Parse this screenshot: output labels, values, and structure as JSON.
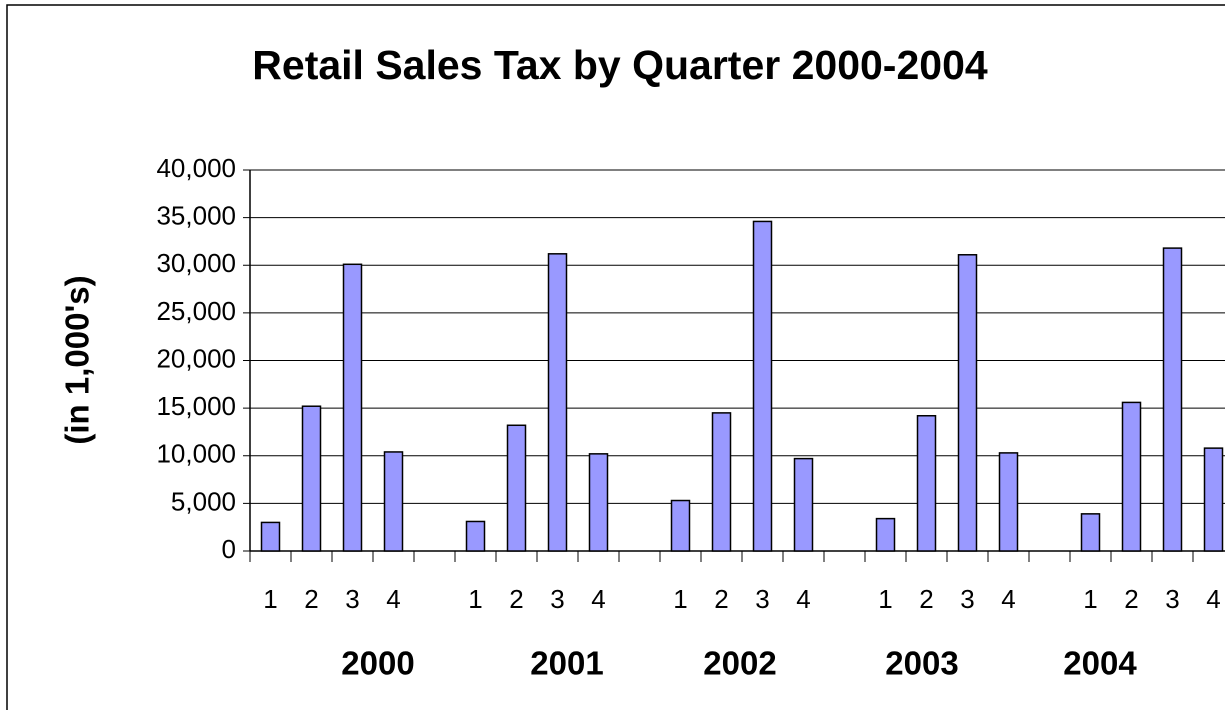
{
  "chart_data": {
    "type": "bar",
    "title": "Retail Sales Tax by Quarter 2000-2004",
    "y_label": "(in 1,000's)",
    "categories": [
      "1",
      "2",
      "3",
      "4",
      null,
      "1",
      "2",
      "3",
      "4",
      null,
      "1",
      "2",
      "3",
      "4",
      null,
      "1",
      "2",
      "3",
      "4",
      null,
      "1",
      "2",
      "3",
      "4"
    ],
    "group_labels": [
      "2000",
      "2001",
      "2002",
      "2003",
      "2004"
    ],
    "values": [
      3000,
      15200,
      30100,
      10400,
      null,
      3100,
      13200,
      31200,
      10200,
      null,
      5300,
      14500,
      34600,
      9700,
      null,
      3400,
      14200,
      31100,
      10300,
      null,
      3900,
      15600,
      31800,
      10800
    ],
    "color": "#9999ff",
    "ylim": [
      0,
      40000
    ],
    "yticks": [
      0,
      {
        "value": 5000,
        "label": "5,000"
      },
      {
        "value": 10000,
        "label": "10,000"
      },
      {
        "value": 15000,
        "label": "15,000"
      },
      {
        "value": 20000,
        "label": "20,000"
      },
      {
        "value": 25000,
        "label": "25,000"
      },
      {
        "value": 30000,
        "label": "30,000"
      },
      {
        "value": 35000,
        "label": "35,000"
      },
      {
        "value": 40000,
        "label": "40,000"
      }
    ],
    "grid": true
  }
}
